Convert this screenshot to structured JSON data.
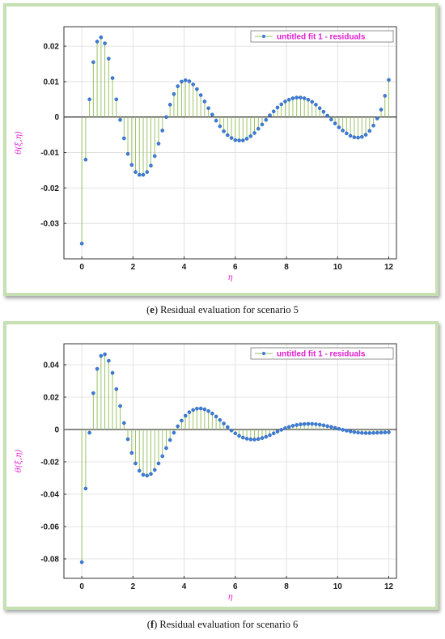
{
  "chart_data": [
    {
      "type": "stem",
      "caption_label": "e",
      "caption_text": "Residual evaluation for scenario 5",
      "xlabel": "η",
      "ylabel": "θ(ξ,η)",
      "legend": "untitled fit 1 - residuals",
      "legend_position": "top-right",
      "xlim": [
        -0.7,
        12.3
      ],
      "ylim": [
        -0.04,
        0.0255
      ],
      "xticks": [
        0,
        2,
        4,
        6,
        8,
        10,
        12
      ],
      "yticks": [
        -0.03,
        -0.02,
        -0.01,
        0,
        0.01,
        0.02
      ],
      "ytick_labels": [
        "-0.03",
        "-0.02",
        "-0.01",
        "0",
        "0.01",
        "0.02"
      ],
      "grid": true,
      "stem_color": "#9cc264",
      "marker_color": "#3c7dd8",
      "x": [
        0,
        0.15,
        0.3,
        0.45,
        0.6,
        0.75,
        0.9,
        1.05,
        1.2,
        1.35,
        1.5,
        1.65,
        1.8,
        1.95,
        2.1,
        2.25,
        2.4,
        2.55,
        2.7,
        2.85,
        3.0,
        3.15,
        3.3,
        3.45,
        3.6,
        3.75,
        3.9,
        4.05,
        4.2,
        4.35,
        4.5,
        4.65,
        4.8,
        4.95,
        5.1,
        5.25,
        5.4,
        5.55,
        5.7,
        5.85,
        6.0,
        6.15,
        6.3,
        6.45,
        6.6,
        6.75,
        6.9,
        7.05,
        7.2,
        7.35,
        7.5,
        7.65,
        7.8,
        7.95,
        8.1,
        8.25,
        8.4,
        8.55,
        8.7,
        8.85,
        9.0,
        9.15,
        9.3,
        9.45,
        9.6,
        9.75,
        9.9,
        10.05,
        10.2,
        10.35,
        10.5,
        10.65,
        10.8,
        10.95,
        11.1,
        11.25,
        11.4,
        11.55,
        11.7,
        11.85,
        12.0
      ],
      "y": [
        -0.0357,
        -0.012,
        0.005,
        0.0155,
        0.0213,
        0.0225,
        0.0208,
        0.0165,
        0.011,
        0.005,
        -0.0008,
        -0.006,
        -0.0104,
        -0.0135,
        -0.0155,
        -0.0163,
        -0.0163,
        -0.0155,
        -0.0137,
        -0.011,
        -0.0075,
        -0.0038,
        0.0,
        0.0035,
        0.0065,
        0.0087,
        0.01,
        0.0104,
        0.0101,
        0.0092,
        0.0079,
        0.0062,
        0.0044,
        0.0025,
        0.0007,
        -0.001,
        -0.0026,
        -0.004,
        -0.0051,
        -0.0059,
        -0.0065,
        -0.0066,
        -0.0066,
        -0.0061,
        -0.0054,
        -0.0045,
        -0.0033,
        -0.0021,
        -0.0008,
        0.0005,
        0.0016,
        0.0027,
        0.0036,
        0.0044,
        0.0049,
        0.0053,
        0.0055,
        0.0055,
        0.0053,
        0.0049,
        0.0043,
        0.0035,
        0.0025,
        0.0015,
        0.0004,
        -0.0007,
        -0.0018,
        -0.0029,
        -0.0038,
        -0.0046,
        -0.0053,
        -0.0057,
        -0.0058,
        -0.0056,
        -0.005,
        -0.0039,
        -0.0024,
        -0.0004,
        0.0021,
        0.006,
        0.0105
      ]
    },
    {
      "type": "stem",
      "caption_label": "f",
      "caption_text": "Residual evaluation for scenario 6",
      "xlabel": "η",
      "ylabel": "θ(ξ,η)",
      "legend": "untitled fit 1 - residuals",
      "legend_position": "top-right",
      "xlim": [
        -0.7,
        12.3
      ],
      "ylim": [
        -0.092,
        0.053
      ],
      "xticks": [
        0,
        2,
        4,
        6,
        8,
        10,
        12
      ],
      "yticks": [
        -0.08,
        -0.06,
        -0.04,
        -0.02,
        0,
        0.02,
        0.04
      ],
      "ytick_labels": [
        "-0.08",
        "-0.06",
        "-0.04",
        "-0.02",
        "0",
        "0.02",
        "0.04"
      ],
      "grid": true,
      "stem_color": "#9cc264",
      "marker_color": "#3c7dd8",
      "x": [
        0,
        0.15,
        0.3,
        0.45,
        0.6,
        0.75,
        0.9,
        1.05,
        1.2,
        1.35,
        1.5,
        1.65,
        1.8,
        1.95,
        2.1,
        2.25,
        2.4,
        2.55,
        2.7,
        2.85,
        3.0,
        3.15,
        3.3,
        3.45,
        3.6,
        3.75,
        3.9,
        4.05,
        4.2,
        4.35,
        4.5,
        4.65,
        4.8,
        4.95,
        5.1,
        5.25,
        5.4,
        5.55,
        5.7,
        5.85,
        6.0,
        6.15,
        6.3,
        6.45,
        6.6,
        6.75,
        6.9,
        7.05,
        7.2,
        7.35,
        7.5,
        7.65,
        7.8,
        7.95,
        8.1,
        8.25,
        8.4,
        8.55,
        8.7,
        8.85,
        9.0,
        9.15,
        9.3,
        9.45,
        9.6,
        9.75,
        9.9,
        10.05,
        10.2,
        10.35,
        10.5,
        10.65,
        10.8,
        10.95,
        11.1,
        11.25,
        11.4,
        11.55,
        11.7,
        11.85,
        12.0
      ],
      "y": [
        -0.082,
        -0.0365,
        -0.002,
        0.0225,
        0.0375,
        0.0455,
        0.0465,
        0.0425,
        0.035,
        0.025,
        0.0145,
        0.004,
        -0.006,
        -0.0145,
        -0.021,
        -0.0255,
        -0.028,
        -0.0285,
        -0.0275,
        -0.025,
        -0.021,
        -0.0165,
        -0.0115,
        -0.0065,
        -0.002,
        0.002,
        0.0055,
        0.0085,
        0.0107,
        0.0121,
        0.0129,
        0.013,
        0.0125,
        0.0114,
        0.0099,
        0.008,
        0.0059,
        0.0037,
        0.0015,
        -0.0006,
        -0.0024,
        -0.0039,
        -0.005,
        -0.0057,
        -0.0061,
        -0.0062,
        -0.0059,
        -0.0053,
        -0.0045,
        -0.0035,
        -0.0024,
        -0.0013,
        -0.0002,
        0.0008,
        0.0016,
        0.0023,
        0.0028,
        0.0032,
        0.0034,
        0.0035,
        0.0035,
        0.0033,
        0.003,
        0.0026,
        0.0021,
        0.0016,
        0.001,
        0.0004,
        -0.0002,
        -0.0007,
        -0.0012,
        -0.0016,
        -0.0019,
        -0.0021,
        -0.0022,
        -0.0022,
        -0.0021,
        -0.002,
        -0.0019,
        -0.0018,
        -0.0017
      ]
    }
  ]
}
